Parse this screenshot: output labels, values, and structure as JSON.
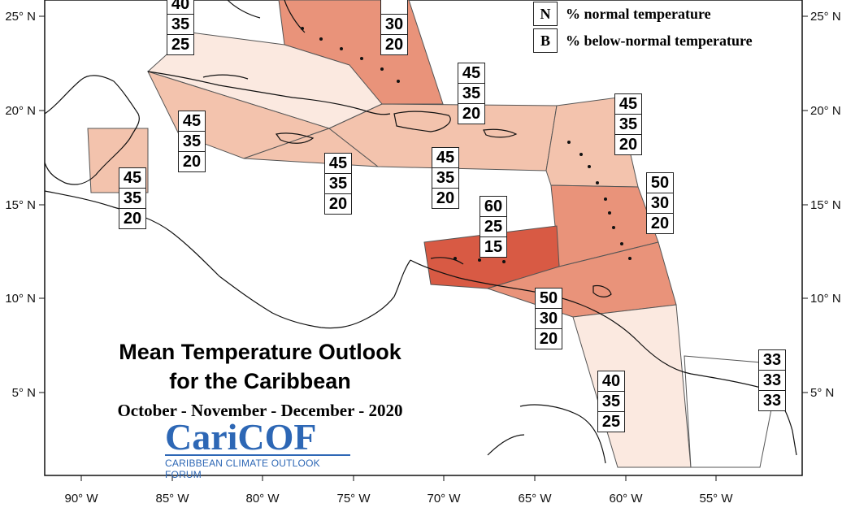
{
  "title": {
    "line1": "Mean Temperature Outlook",
    "line2": "for the Caribbean",
    "period": "October - November - December - 2020"
  },
  "logo": {
    "name": "CariCOF",
    "tagline": "CARIBBEAN CLIMATE OUTLOOK FORUM"
  },
  "legend": [
    {
      "key": "N",
      "label": "% normal temperature"
    },
    {
      "key": "B",
      "label": "% below-normal temperature"
    }
  ],
  "axes": {
    "longitude_ticks": [
      "90° W",
      "85° W",
      "80° W",
      "75° W",
      "70° W",
      "65° W",
      "60° W",
      "55° W"
    ],
    "latitude_ticks": [
      "25° N",
      "20° N",
      "15° N",
      "10° N",
      "5° N"
    ]
  },
  "colors": {
    "prob_25": "#fbe9e0",
    "prob_35": "#f6c7b1",
    "prob_45": "#f3c3ad",
    "prob_50": "#e9937a",
    "prob_60": "#d85a44",
    "prob_33": "#ffffff"
  },
  "regions": [
    {
      "id": "bahamas-north",
      "values": [
        "",
        "30",
        "20"
      ]
    },
    {
      "id": "florida-straits",
      "values": [
        "40",
        "35",
        "25"
      ]
    },
    {
      "id": "western-cuba",
      "values": [
        "45",
        "35",
        "20"
      ]
    },
    {
      "id": "belize-yucatan",
      "values": [
        "45",
        "35",
        "20"
      ]
    },
    {
      "id": "jamaica",
      "values": [
        "45",
        "35",
        "20"
      ]
    },
    {
      "id": "hispaniola",
      "values": [
        "45",
        "35",
        "20"
      ]
    },
    {
      "id": "turks-caicos",
      "values": [
        "45",
        "35",
        "20"
      ]
    },
    {
      "id": "leeward-islands",
      "values": [
        "45",
        "35",
        "20"
      ]
    },
    {
      "id": "windward-islands",
      "values": [
        "50",
        "30",
        "20"
      ]
    },
    {
      "id": "abc-islands",
      "values": [
        "60",
        "25",
        "15"
      ]
    },
    {
      "id": "trinidad-tobago",
      "values": [
        "50",
        "30",
        "20"
      ]
    },
    {
      "id": "guyana",
      "values": [
        "40",
        "35",
        "25"
      ]
    },
    {
      "id": "suriname-french-guiana",
      "values": [
        "33",
        "33",
        "33"
      ]
    }
  ]
}
